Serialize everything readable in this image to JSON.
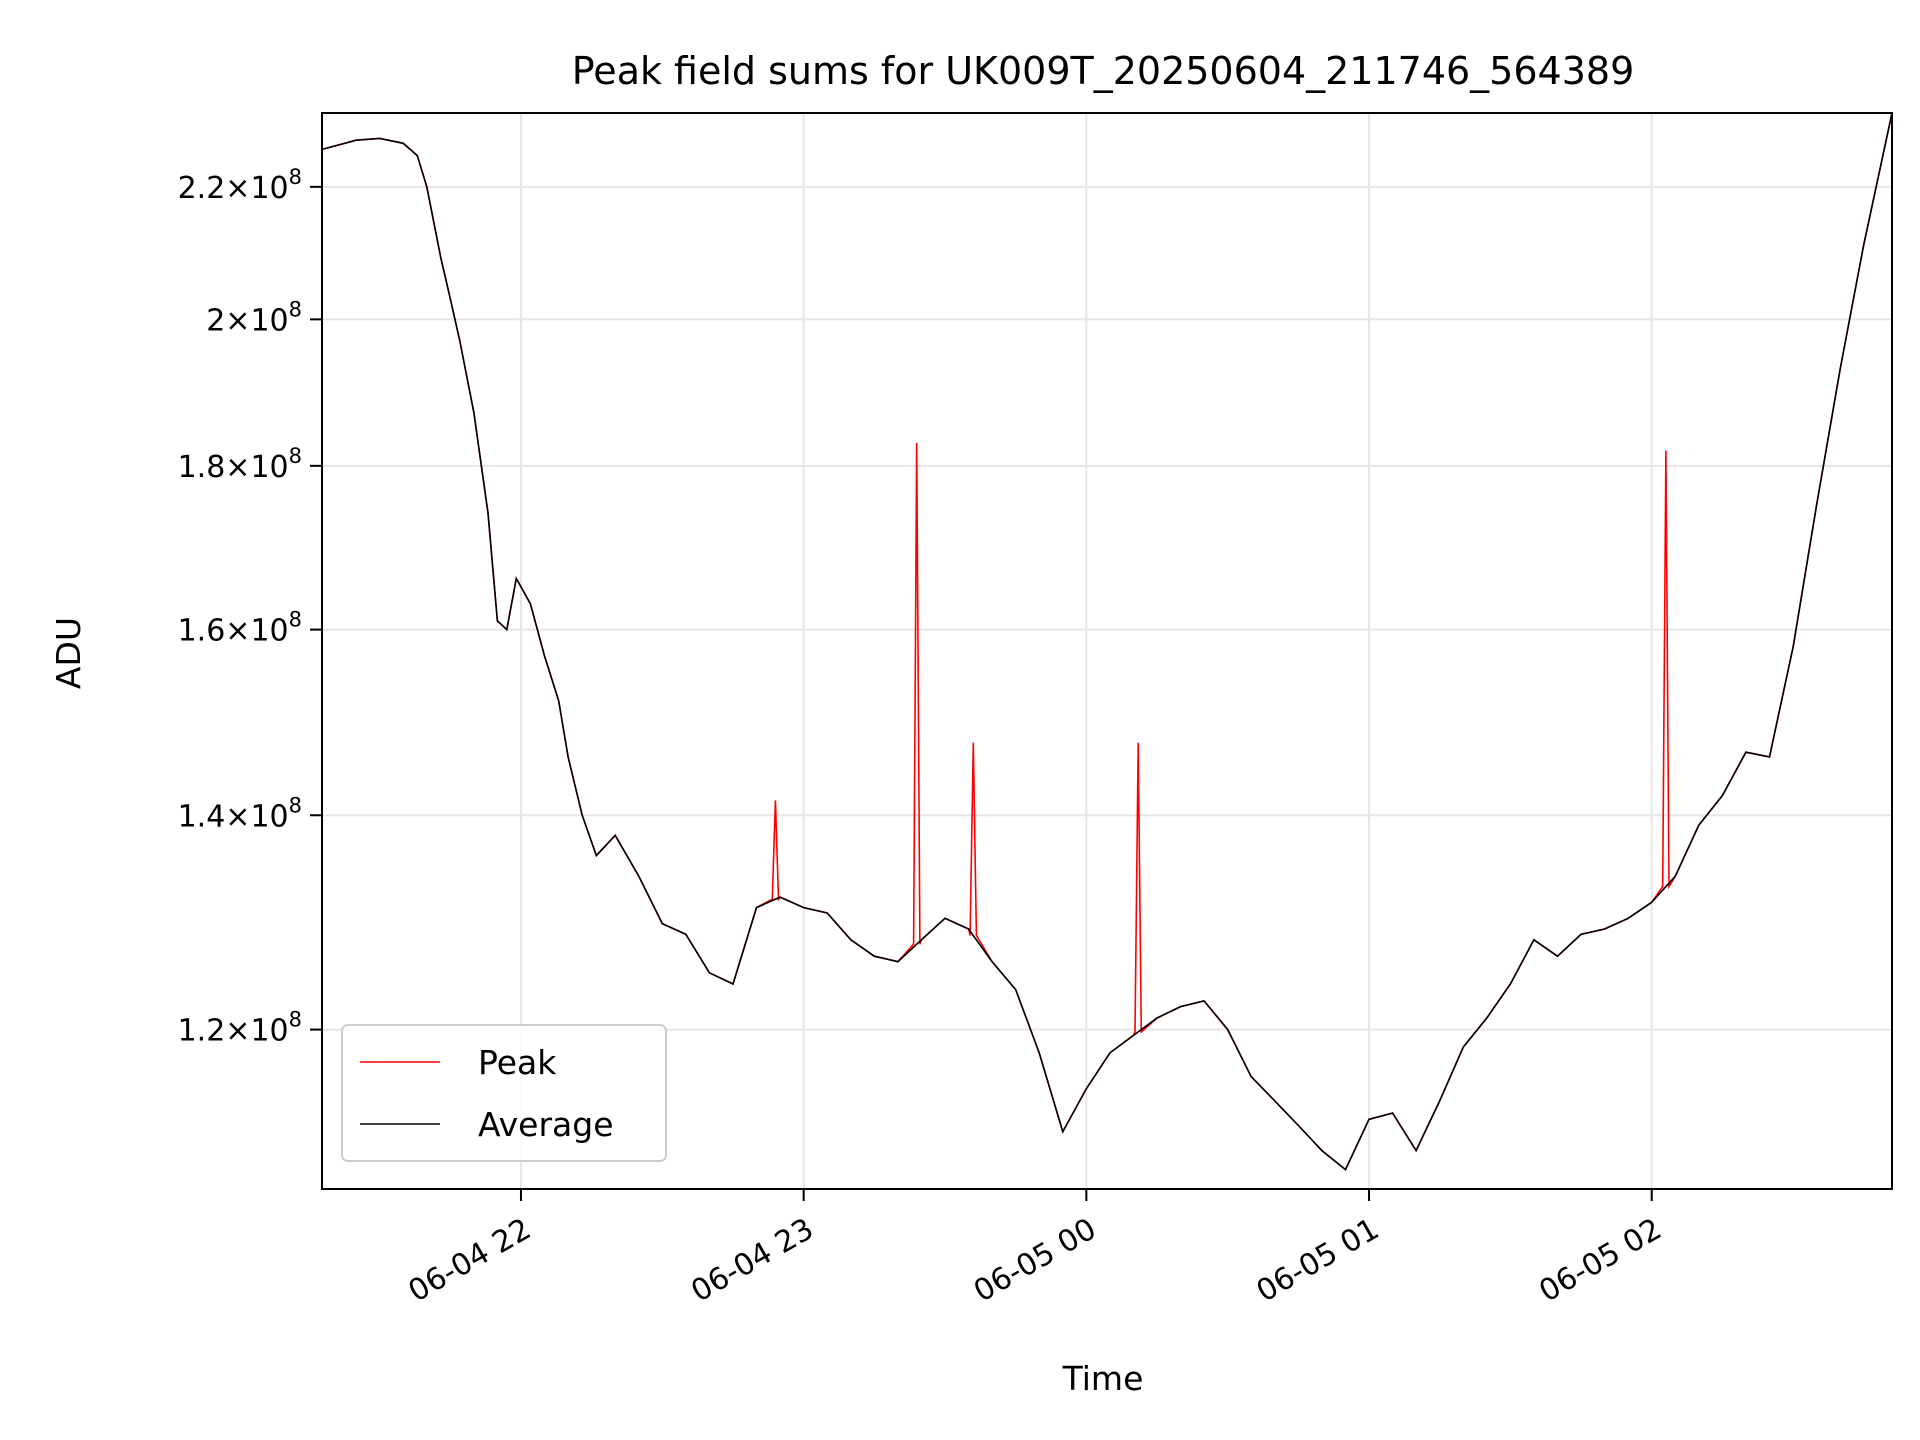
{
  "chart_data": {
    "type": "line",
    "title": "Peak field sums for UK009T_20250604_211746_564389",
    "xlabel": "Time",
    "ylabel": "ADU",
    "yscale": "log",
    "ylim": [
      107000000.0,
      232000000.0
    ],
    "xlim": [
      "2025-06-04 21:17:46",
      "2025-06-05 02:51:00"
    ],
    "grid": true,
    "legend_position": "lower-left",
    "x_ticks": [
      {
        "value": "2025-06-04 22:00",
        "label": "06-04 22"
      },
      {
        "value": "2025-06-04 23:00",
        "label": "06-04 23"
      },
      {
        "value": "2025-06-05 00:00",
        "label": "06-05 00"
      },
      {
        "value": "2025-06-05 01:00",
        "label": "06-05 01"
      },
      {
        "value": "2025-06-05 02:00",
        "label": "06-05 02"
      }
    ],
    "y_ticks": [
      {
        "value": 120000000.0,
        "mantissa": "1.2",
        "exp": "8"
      },
      {
        "value": 140000000.0,
        "mantissa": "1.4",
        "exp": "8"
      },
      {
        "value": 160000000.0,
        "mantissa": "1.6",
        "exp": "8"
      },
      {
        "value": 180000000.0,
        "mantissa": "1.8",
        "exp": "8"
      },
      {
        "value": 200000000.0,
        "mantissa": "2",
        "exp": "8"
      },
      {
        "value": 220000000.0,
        "mantissa": "2.2",
        "exp": "8"
      }
    ],
    "series": [
      {
        "name": "Average",
        "color": "#000000",
        "x": [
          "2025-06-04 21:17:46",
          "2025-06-04 21:25",
          "2025-06-04 21:30",
          "2025-06-04 21:35",
          "2025-06-04 21:38",
          "2025-06-04 21:40",
          "2025-06-04 21:43",
          "2025-06-04 21:45",
          "2025-06-04 21:47",
          "2025-06-04 21:50",
          "2025-06-04 21:53",
          "2025-06-04 21:55",
          "2025-06-04 21:57",
          "2025-06-04 21:59",
          "2025-06-04 22:02",
          "2025-06-04 22:05",
          "2025-06-04 22:08",
          "2025-06-04 22:10",
          "2025-06-04 22:13",
          "2025-06-04 22:16",
          "2025-06-04 22:20",
          "2025-06-04 22:25",
          "2025-06-04 22:30",
          "2025-06-04 22:35",
          "2025-06-04 22:40",
          "2025-06-04 22:45",
          "2025-06-04 22:50",
          "2025-06-04 22:55",
          "2025-06-04 23:00",
          "2025-06-04 23:05",
          "2025-06-04 23:10",
          "2025-06-04 23:15",
          "2025-06-04 23:20",
          "2025-06-04 23:25",
          "2025-06-04 23:30",
          "2025-06-04 23:35",
          "2025-06-04 23:40",
          "2025-06-04 23:45",
          "2025-06-04 23:50",
          "2025-06-04 23:55",
          "2025-06-05 00:00",
          "2025-06-05 00:05",
          "2025-06-05 00:10",
          "2025-06-05 00:15",
          "2025-06-05 00:20",
          "2025-06-05 00:25",
          "2025-06-05 00:30",
          "2025-06-05 00:35",
          "2025-06-05 00:40",
          "2025-06-05 00:45",
          "2025-06-05 00:50",
          "2025-06-05 00:55",
          "2025-06-05 01:00",
          "2025-06-05 01:05",
          "2025-06-05 01:10",
          "2025-06-05 01:15",
          "2025-06-05 01:20",
          "2025-06-05 01:25",
          "2025-06-05 01:30",
          "2025-06-05 01:35",
          "2025-06-05 01:40",
          "2025-06-05 01:45",
          "2025-06-05 01:50",
          "2025-06-05 01:55",
          "2025-06-05 02:00",
          "2025-06-05 02:05",
          "2025-06-05 02:10",
          "2025-06-05 02:15",
          "2025-06-05 02:20",
          "2025-06-05 02:25",
          "2025-06-05 02:30",
          "2025-06-05 02:35",
          "2025-06-05 02:40",
          "2025-06-05 02:45",
          "2025-06-05 02:51"
        ],
        "values": [
          226000000,
          227500000,
          227800000,
          227000000,
          225000000,
          220000000,
          209000000,
          203000000,
          197000000,
          187000000,
          174000000,
          161000000,
          160000000,
          166000000,
          163000000,
          157000000,
          152000000,
          146000000,
          140000000,
          136000000,
          138000000,
          134000000,
          129500000,
          128500000,
          125000000,
          124000000,
          131000000,
          132000000,
          131000000,
          130500000,
          128000000,
          126500000,
          126000000,
          128000000,
          130000000,
          129000000,
          126000000,
          123500000,
          118000000,
          111500000,
          115000000,
          118000000,
          119500000,
          121000000,
          122000000,
          122500000,
          120000000,
          116000000,
          114000000,
          112000000,
          110000000,
          108500000,
          112500000,
          113000000,
          110000000,
          114000000,
          118500000,
          121000000,
          124000000,
          128000000,
          126500000,
          128500000,
          129000000,
          130000000,
          131500000,
          134000000,
          139000000,
          142000000,
          146500000,
          146000000,
          158000000,
          175000000,
          193000000,
          211000000,
          232000000
        ]
      },
      {
        "name": "Peak",
        "color": "#ff0000",
        "spikes": [
          {
            "x": "2025-06-04 22:54",
            "value": 141500000
          },
          {
            "x": "2025-06-04 23:24",
            "value": 183000000
          },
          {
            "x": "2025-06-04 23:36",
            "value": 147500000
          },
          {
            "x": "2025-06-05 00:11",
            "value": 147500000
          },
          {
            "x": "2025-06-05 02:03",
            "value": 182000000
          }
        ]
      }
    ]
  }
}
